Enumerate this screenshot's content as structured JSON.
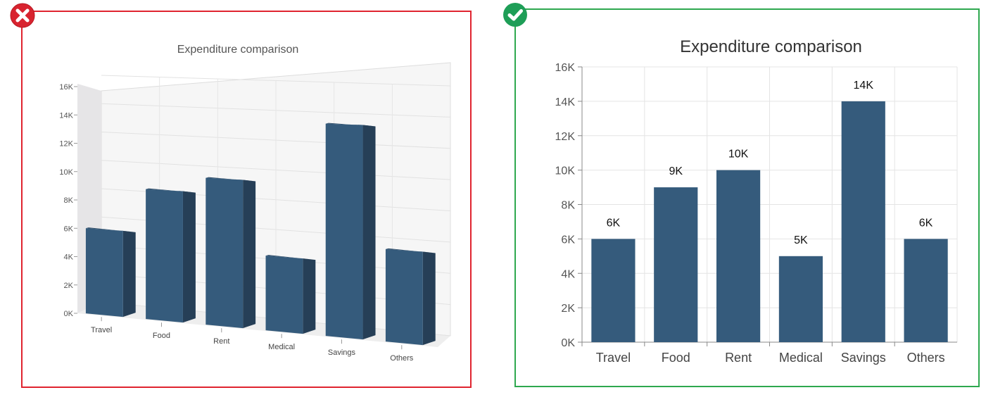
{
  "colors": {
    "bad_border": "#e0242f",
    "good_border": "#2ea84f",
    "bar_front": "#355b7c",
    "bar_side": "#263f57",
    "bar_top": "#2c4a66"
  },
  "icons": {
    "bad": "x-circle-icon",
    "good": "check-circle-icon"
  },
  "chart_data": [
    {
      "type": "bar",
      "style": "3d",
      "title": "Expenditure comparison",
      "categories": [
        "Travel",
        "Food",
        "Rent",
        "Medical",
        "Savings",
        "Others"
      ],
      "values": [
        6000,
        9000,
        10000,
        5000,
        14000,
        6000
      ],
      "y_ticks": [
        "0K",
        "2K",
        "4K",
        "6K",
        "8K",
        "10K",
        "12K",
        "14K",
        "16K"
      ],
      "ylim": [
        0,
        16000
      ],
      "grid": true,
      "legend": "none"
    },
    {
      "type": "bar",
      "style": "flat",
      "title": "Expenditure comparison",
      "categories": [
        "Travel",
        "Food",
        "Rent",
        "Medical",
        "Savings",
        "Others"
      ],
      "values": [
        6000,
        9000,
        10000,
        5000,
        14000,
        6000
      ],
      "data_labels": [
        "6K",
        "9K",
        "10K",
        "5K",
        "14K",
        "6K"
      ],
      "y_ticks": [
        "0K",
        "2K",
        "4K",
        "6K",
        "8K",
        "10K",
        "12K",
        "14K",
        "16K"
      ],
      "ylim": [
        0,
        16000
      ],
      "grid": true,
      "legend": "none"
    }
  ]
}
